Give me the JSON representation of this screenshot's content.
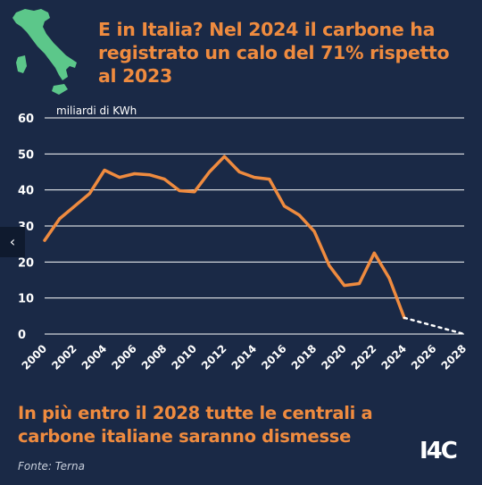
{
  "title": "E in Italia? Nel 2024 il carbone ha registrato un calo del 71% rispetto al 2023",
  "subtitle": "In più entro il 2028 tutte le centrali a carbone italiane saranno dismesse",
  "source": "Fonte: Terna",
  "logo_text": "I4C",
  "nav": {
    "prev_label": "‹"
  },
  "icons": {
    "map": "italy-map-icon",
    "prev": "chevron-left-icon"
  },
  "colors": {
    "background": "#1a2946",
    "accent": "#ef8b3f",
    "map": "#5cc78a",
    "text": "#ffffff",
    "grid": "#ffffff"
  },
  "chart_data": {
    "type": "line",
    "unit_label": "miliardi di KWh",
    "ylim": [
      0,
      60
    ],
    "yticks": [
      0,
      10,
      20,
      30,
      40,
      50,
      60
    ],
    "xlim": [
      2000,
      2028
    ],
    "xticks": [
      "2000",
      "2002",
      "2004",
      "2006",
      "2008",
      "2010",
      "2012",
      "2014",
      "2016",
      "2018",
      "2020",
      "2022",
      "2024",
      "2026",
      "2028"
    ],
    "grid": "horizontal",
    "series": [
      {
        "style": "solid",
        "x": [
          2000,
          2001,
          2002,
          2003,
          2004,
          2005,
          2006,
          2007,
          2008,
          2009,
          2010,
          2011,
          2012,
          2013,
          2014,
          2015,
          2016,
          2017,
          2018,
          2019,
          2020,
          2021,
          2022,
          2023,
          2024
        ],
        "values": [
          26,
          32,
          35.5,
          39,
          45.5,
          43.5,
          44.5,
          44.2,
          43,
          39.8,
          39.5,
          45,
          49.3,
          45,
          43.5,
          43,
          35.5,
          33,
          28.5,
          19,
          13.5,
          14,
          22.5,
          15.5,
          4.5
        ]
      },
      {
        "style": "dashed",
        "x": [
          2024,
          2028
        ],
        "values": [
          4.5,
          0
        ]
      }
    ]
  }
}
